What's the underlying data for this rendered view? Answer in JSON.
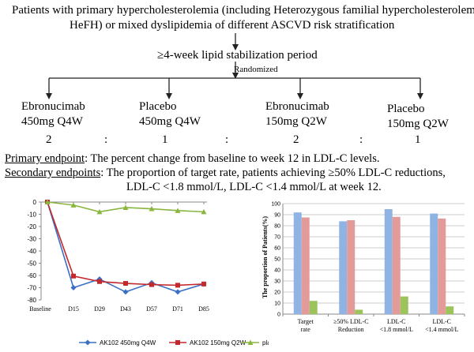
{
  "header": {
    "line1": "Patients with primary hypercholesterolemia (including Heterozygous familial hypercholesterolemia,",
    "line2": "HeFH) or mixed dyslipidemia of different ASCVD risk stratification"
  },
  "stabilization": "≥4-week lipid stabilization period",
  "randomized": "Randomized",
  "arms": [
    {
      "name": "Ebronucimab",
      "dose": "450mg Q4W",
      "ratio": "2"
    },
    {
      "name": "Placebo",
      "dose": "450mg Q4W",
      "ratio": "1"
    },
    {
      "name": "Ebronucimab",
      "dose": "150mg Q2W",
      "ratio": "2"
    },
    {
      "name": "Placebo",
      "dose": "150mg Q2W",
      "ratio": "1"
    }
  ],
  "ratio_sep": ":",
  "primary": {
    "label": "Primary endpoint",
    "text": ": The percent change from baseline to week 12 in LDL-C levels."
  },
  "secondary": {
    "label": "Secondary endpoints",
    "text1": ": The proportion of target rate, patients achieving ≥50% LDL-C reductions,",
    "text2": "LDL-C <1.8 mmol/L, LDL-C <1.4 mmol/L at week 12."
  },
  "chart_data": [
    {
      "type": "line",
      "categories": [
        "Baseline",
        "D15",
        "D29",
        "D43",
        "D57",
        "D71",
        "D85"
      ],
      "ylim": [
        -80,
        0
      ],
      "yticks": [
        "0",
        "-10",
        "-20",
        "-30",
        "-40",
        "-50",
        "-60",
        "-70",
        "-80"
      ],
      "grid": false,
      "legend": "bottom",
      "series": [
        {
          "name": "AK102 450mg Q4W",
          "color": "#3a6fc4",
          "marker": "diamond",
          "values": [
            0,
            -70,
            -63,
            -73.5,
            -66,
            -73.5,
            -67
          ]
        },
        {
          "name": "AK102 150mg Q2W",
          "color": "#c4282a",
          "marker": "square",
          "values": [
            0,
            -60.5,
            -65,
            -66.5,
            -67.5,
            -68,
            -67
          ]
        },
        {
          "name": "placebo",
          "color": "#8ab640",
          "marker": "triangle",
          "values": [
            0,
            -2.5,
            -8,
            -4.5,
            -5.5,
            -7,
            -8
          ]
        }
      ]
    },
    {
      "type": "bar",
      "ylabel": "The proportion of Patients(%)",
      "ylim": [
        0,
        100
      ],
      "yticks": [
        "0",
        "10",
        "20",
        "30",
        "40",
        "50",
        "60",
        "70",
        "80",
        "90",
        "100"
      ],
      "grid": true,
      "categories": [
        [
          "Target",
          "rate"
        ],
        [
          "≥50% LDL-C",
          "Reduction"
        ],
        [
          "LDL-C",
          "<1.8 mmol/L"
        ],
        [
          "LDL-C",
          "<1.4 mmol/L"
        ]
      ],
      "series": [
        {
          "color": "#8fb3e2",
          "values": [
            92,
            84,
            95,
            91
          ]
        },
        {
          "color": "#e39b9a",
          "values": [
            87.5,
            85,
            88,
            86.5
          ]
        },
        {
          "color": "#9dc45c",
          "values": [
            12,
            4,
            16,
            7
          ]
        }
      ]
    }
  ]
}
